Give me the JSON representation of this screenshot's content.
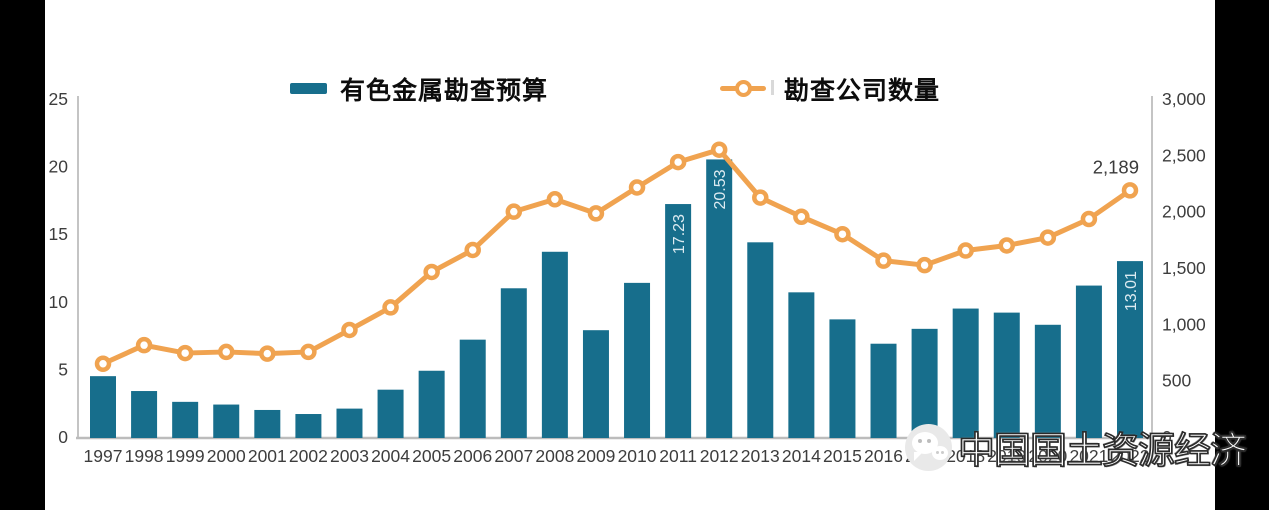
{
  "legend": {
    "items": [
      {
        "label": "有色金属勘查预算",
        "type": "bar",
        "color": "#176e8c"
      },
      {
        "label": "勘查公司数量",
        "type": "line",
        "color": "#f0a350"
      }
    ],
    "position": "top"
  },
  "watermark": {
    "icon": "wechat-icon",
    "text": "中国国土资源经济"
  },
  "chart_data": {
    "type": "bar",
    "subtype": "combo-bar-line-dual-axis",
    "categories": [
      "1997",
      "1998",
      "1999",
      "2000",
      "2001",
      "2002",
      "2003",
      "2004",
      "2005",
      "2006",
      "2007",
      "2008",
      "2009",
      "2010",
      "2011",
      "2012",
      "2013",
      "2014",
      "2015",
      "2016",
      "2017",
      "2018",
      "2019",
      "2020",
      "2021",
      "2022"
    ],
    "series": [
      {
        "name": "有色金属勘查预算",
        "type": "bar",
        "axis": "left",
        "color": "#176e8c",
        "values": [
          4.5,
          3.4,
          2.6,
          2.4,
          2.0,
          1.7,
          2.1,
          3.5,
          4.9,
          7.2,
          11.0,
          13.7,
          7.9,
          11.4,
          17.23,
          20.53,
          14.4,
          10.7,
          8.7,
          6.9,
          8.0,
          9.5,
          9.2,
          8.3,
          11.2,
          13.01
        ]
      },
      {
        "name": "勘查公司数量",
        "type": "line",
        "axis": "right",
        "color": "#f0a350",
        "values": [
          650,
          815,
          745,
          755,
          740,
          755,
          950,
          1150,
          1465,
          1660,
          2000,
          2110,
          1985,
          2215,
          2440,
          2550,
          2125,
          1955,
          1800,
          1565,
          1525,
          1655,
          1700,
          1770,
          1935,
          2189
        ]
      }
    ],
    "bar_labels": [
      {
        "category": "2011",
        "text": "17.23"
      },
      {
        "category": "2012",
        "text": "20.53"
      },
      {
        "category": "2022",
        "text": "13.01"
      }
    ],
    "line_labels": [
      {
        "category": "2022",
        "text": "2,189"
      }
    ],
    "left_axis": {
      "range": [
        0,
        25
      ],
      "ticks": [
        "0",
        "5",
        "10",
        "15",
        "20",
        "25"
      ]
    },
    "right_axis": {
      "range": [
        0,
        3000
      ],
      "ticks": [
        "0",
        "500",
        "1,000",
        "1,500",
        "2,000",
        "2,500",
        "3,000"
      ]
    },
    "grid": false,
    "legend_position": "top",
    "title": "",
    "xlabel": "",
    "ylabel": "",
    "colors": {
      "bar": "#176e8c",
      "line": "#f0a350",
      "axis_line": "#c4c4c4",
      "tick_text": "#3d3d3d",
      "bar_label_text": "#ddebf1"
    }
  }
}
